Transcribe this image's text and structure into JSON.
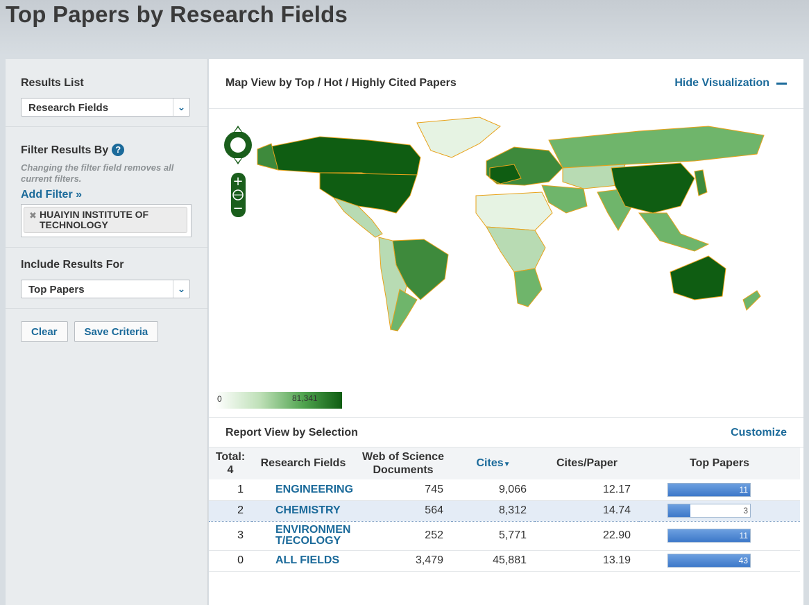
{
  "page_title": "Top Papers by Research Fields",
  "sidebar": {
    "results_list_label": "Results List",
    "results_list_value": "Research Fields",
    "filter_label": "Filter Results By",
    "filter_note": "Changing the filter field removes all current filters.",
    "add_filter": "Add Filter »",
    "filter_chip": "HUAIYIN INSTITUTE OF TECHNOLOGY",
    "include_label": "Include Results For",
    "include_value": "Top Papers",
    "clear_button": "Clear",
    "save_button": "Save Criteria"
  },
  "map": {
    "title": "Map View by Top / Hot / Highly Cited Papers",
    "hide_label": "Hide Visualization",
    "legend_min": "0",
    "legend_max": "81,341",
    "colors": {
      "dark": "#0f5d12",
      "mid": "#3e8a3c",
      "light": "#6fb56b",
      "pale": "#b8dbb3",
      "border": "#e8a21a"
    }
  },
  "report": {
    "title": "Report View by Selection",
    "customize": "Customize",
    "headers": {
      "total": "Total:",
      "total_count": "4",
      "field": "Research Fields",
      "docs_line1": "Web of Science",
      "docs_line2": "Documents",
      "cites": "Cites",
      "cpp": "Cites/Paper",
      "top": "Top Papers"
    },
    "rows": [
      {
        "rank": "1",
        "field": "ENGINEERING",
        "docs": "745",
        "cites": "9,066",
        "cpp": "12.17",
        "top": "11",
        "top_fraction": 1.0
      },
      {
        "rank": "2",
        "field": "CHEMISTRY",
        "docs": "564",
        "cites": "8,312",
        "cpp": "14.74",
        "top": "3",
        "top_fraction": 0.27
      },
      {
        "rank": "3",
        "field": "ENVIRONMENT/ECOLOGY",
        "docs": "252",
        "cites": "5,771",
        "cpp": "22.90",
        "top": "11",
        "top_fraction": 1.0
      },
      {
        "rank": "0",
        "field": "ALL FIELDS",
        "docs": "3,479",
        "cites": "45,881",
        "cpp": "13.19",
        "top": "43",
        "top_fraction": 1.0
      }
    ]
  }
}
